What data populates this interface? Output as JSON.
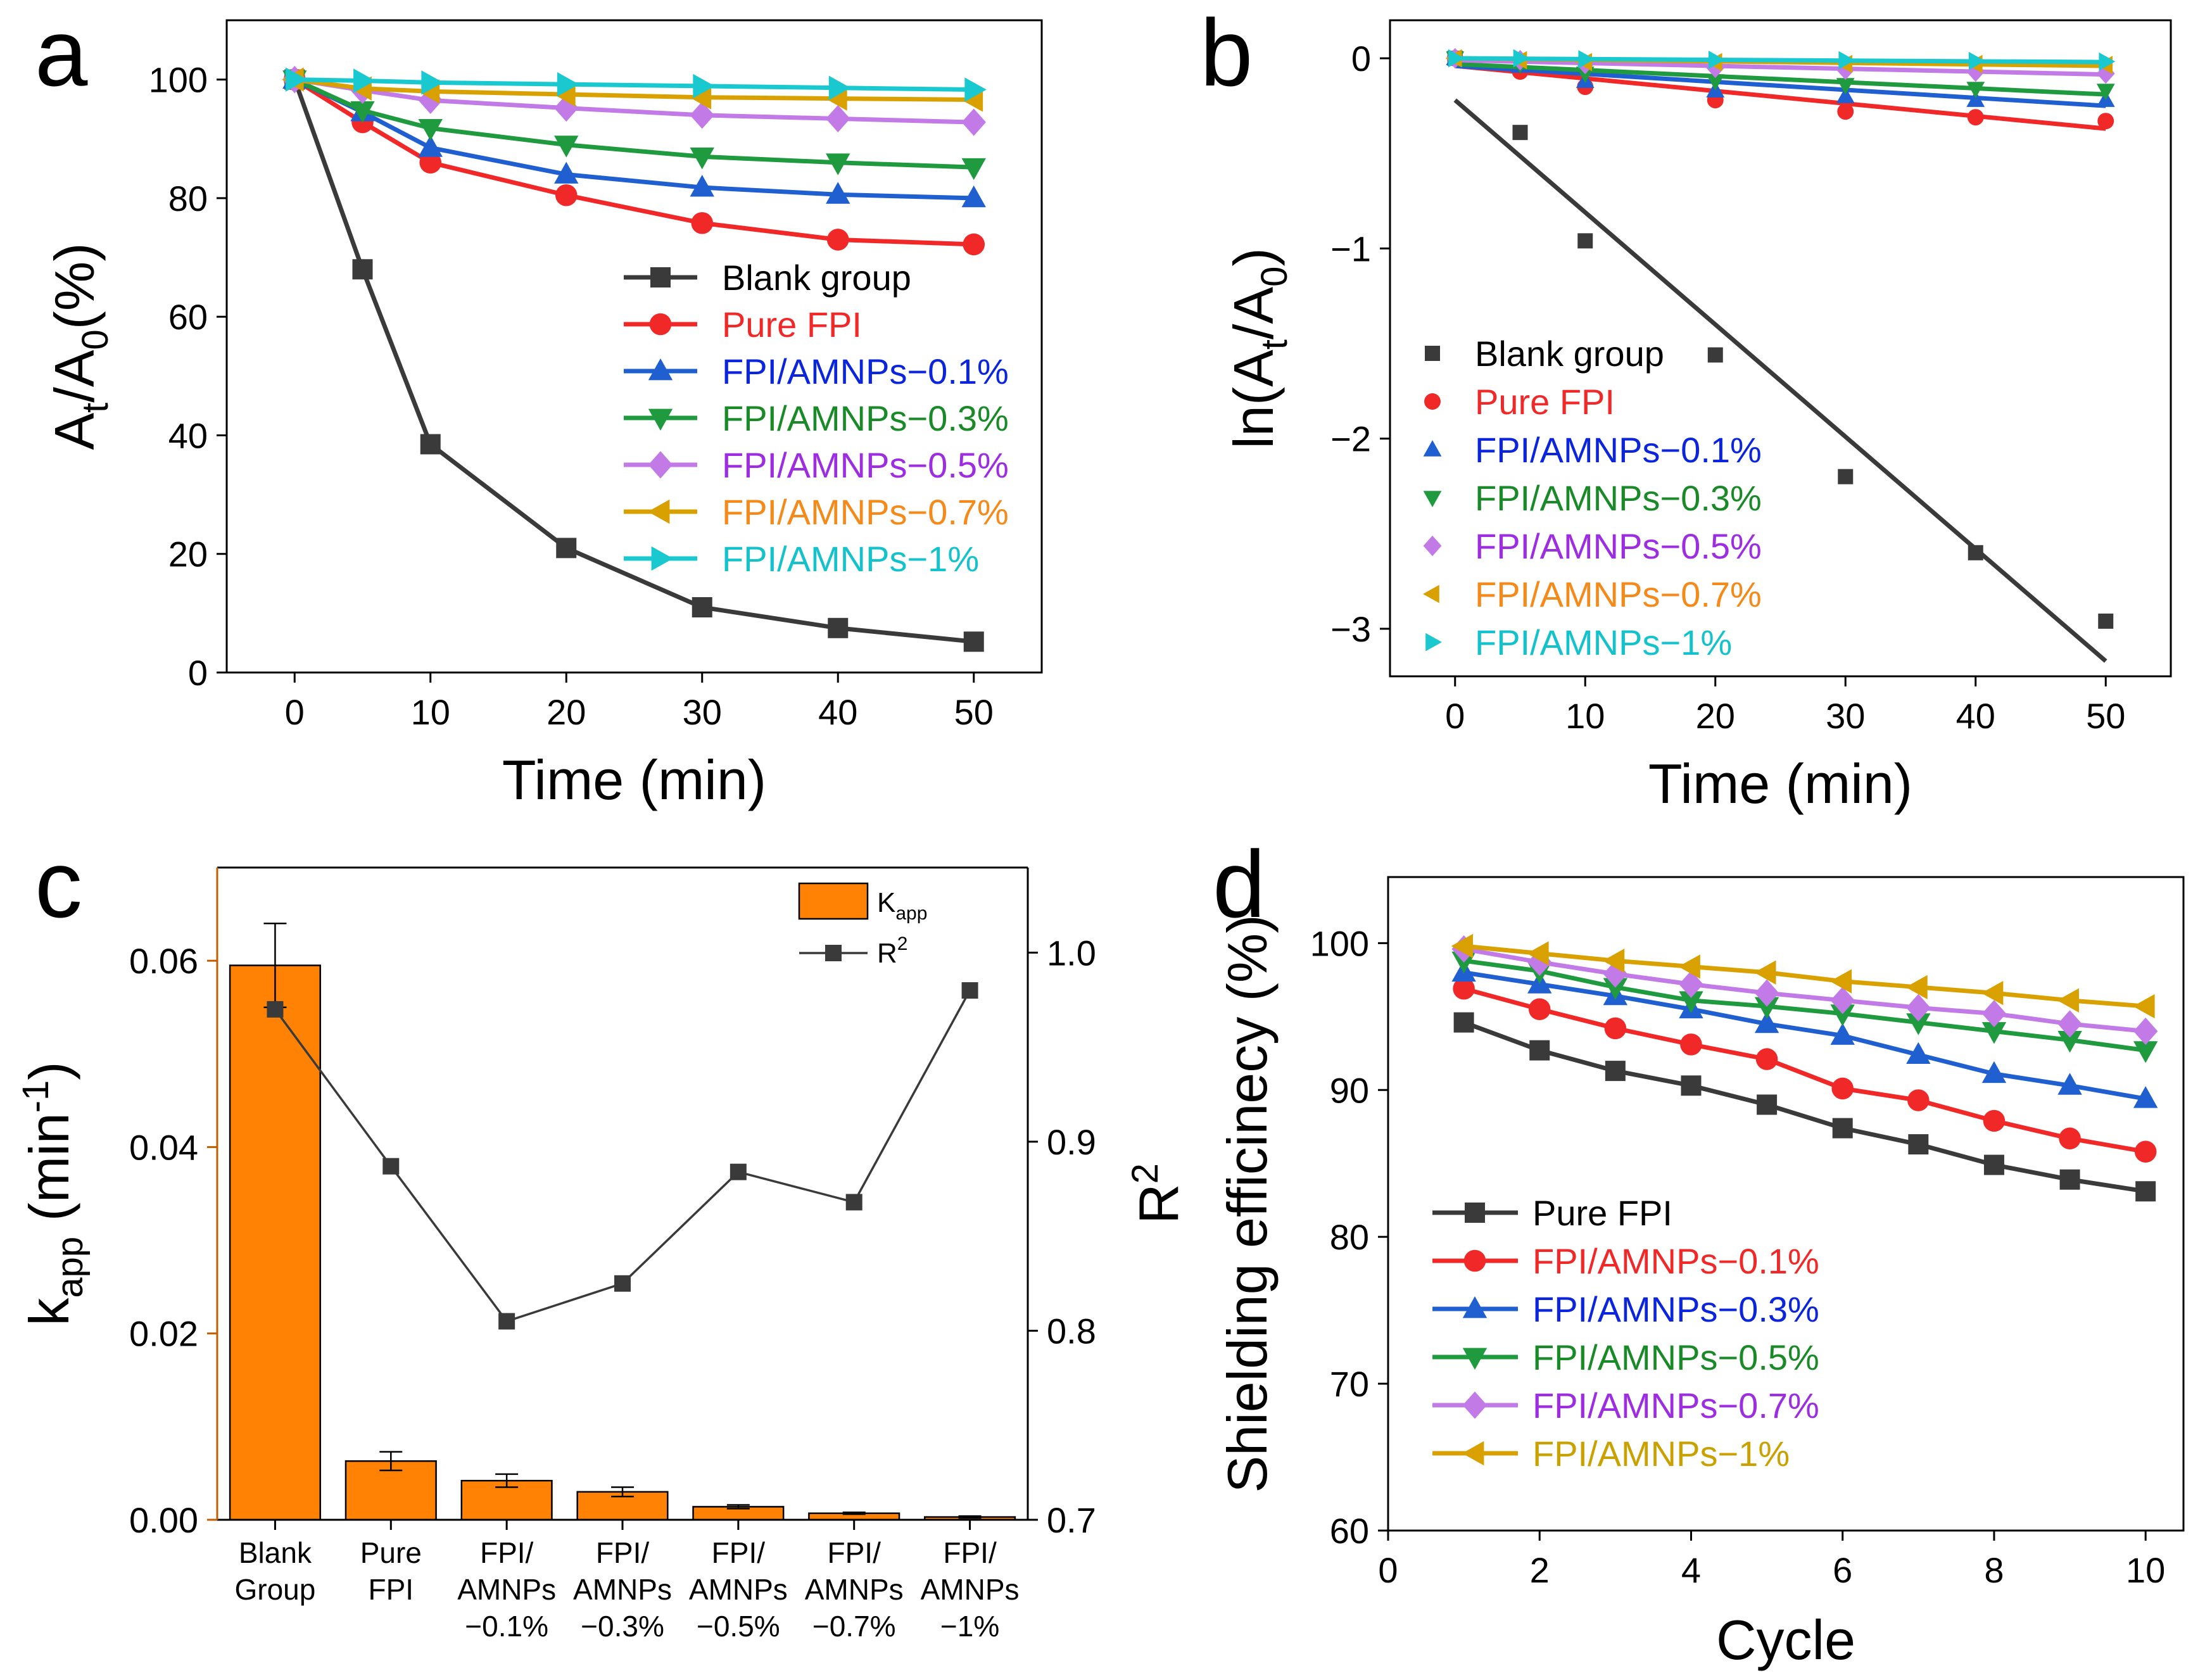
{
  "colors": {
    "black": "#3a3a3a",
    "red": "#f02828",
    "blue": "#1f5fd0",
    "green": "#1f9a3e",
    "violet": "#c27ae6",
    "gold": "#d9a100",
    "cyan": "#19c9cf",
    "orange": "#ff8205",
    "axis_orange": "#c25e00",
    "legend_blue": "#0b25dd",
    "legend_green": "#1a8a28",
    "legend_violet": "#9d2de0",
    "legend_orange": "#f38a1a",
    "legend_cyan": "#14c2cc",
    "legend_gold": "#c9a100"
  },
  "chart_data": [
    {
      "panel": "a",
      "type": "line",
      "xlabel": "Time (min)",
      "ylabel": {
        "base": "A",
        "sub1": "t",
        "mid": "/A",
        "sub2": "0",
        "tail": "(%)"
      },
      "xlim": [
        -5,
        55
      ],
      "ylim": [
        0,
        110
      ],
      "xticks": [
        0,
        10,
        20,
        30,
        40,
        50
      ],
      "yticks": [
        0,
        20,
        40,
        60,
        80,
        100
      ],
      "legend_position": "center-right",
      "x": [
        0,
        5,
        10,
        20,
        30,
        40,
        50
      ],
      "series": [
        {
          "name": "Blank group",
          "marker": "square",
          "color": "#3a3a3a",
          "legend_color": "#000000",
          "values": [
            100,
            68,
            38.5,
            21,
            11,
            7.5,
            5.2
          ]
        },
        {
          "name": "Pure FPI",
          "marker": "circle",
          "color": "#f02828",
          "legend_color": "#f02828",
          "values": [
            100,
            92.8,
            86,
            80.5,
            75.8,
            73,
            72.2
          ]
        },
        {
          "name": "FPI/AMNPs−0.1%",
          "marker": "triangle-up",
          "color": "#1f5fd0",
          "legend_color": "#0b25dd",
          "values": [
            100,
            94.5,
            88.5,
            84,
            81.8,
            80.6,
            80
          ]
        },
        {
          "name": "FPI/AMNPs−0.3%",
          "marker": "triangle-down",
          "color": "#1f9a3e",
          "legend_color": "#1a8a28",
          "values": [
            100,
            94.8,
            91.8,
            89,
            87,
            86,
            85.2
          ]
        },
        {
          "name": "FPI/AMNPs−0.5%",
          "marker": "diamond",
          "color": "#c27ae6",
          "legend_color": "#9d2de0",
          "values": [
            100,
            98.2,
            96.5,
            95.2,
            94,
            93.4,
            92.8
          ]
        },
        {
          "name": "FPI/AMNPs−0.7%",
          "marker": "triangle-left",
          "color": "#d9a100",
          "legend_color": "#f38a1a",
          "values": [
            100,
            98.5,
            98,
            97.5,
            97,
            96.8,
            96.6
          ]
        },
        {
          "name": "FPI/AMNPs−1%",
          "marker": "triangle-right",
          "color": "#19c9cf",
          "legend_color": "#14c2cc",
          "values": [
            100,
            99.8,
            99.5,
            99.2,
            98.9,
            98.6,
            98.3
          ]
        }
      ]
    },
    {
      "panel": "b",
      "type": "scatter",
      "xlabel": "Time (min)",
      "ylabel": {
        "base": "ln(A",
        "sub1": "t",
        "mid": "/A",
        "sub2": "0",
        "tail": ")"
      },
      "xlim": [
        -5,
        55
      ],
      "ylim": [
        -3.25,
        0.2
      ],
      "xticks": [
        0,
        10,
        20,
        30,
        40,
        50
      ],
      "yticks": [
        -3,
        -2,
        -1,
        0
      ],
      "legend_position": "center-left",
      "x": [
        0,
        5,
        10,
        20,
        30,
        40,
        50
      ],
      "series": [
        {
          "name": "Blank group",
          "marker": "square",
          "color": "#3a3a3a",
          "legend_color": "#000000",
          "values": [
            0,
            -0.39,
            -0.96,
            -1.56,
            -2.2,
            -2.6,
            -2.96
          ],
          "fit": [
            -0.22,
            -3.17
          ]
        },
        {
          "name": "Pure FPI",
          "marker": "circle",
          "color": "#f02828",
          "legend_color": "#f02828",
          "values": [
            0,
            -0.07,
            -0.15,
            -0.22,
            -0.28,
            -0.31,
            -0.33
          ],
          "fit": [
            -0.04,
            -0.37
          ]
        },
        {
          "name": "FPI/AMNPs−0.1%",
          "marker": "triangle-up",
          "color": "#1f5fd0",
          "legend_color": "#0b25dd",
          "values": [
            0,
            -0.04,
            -0.12,
            -0.17,
            -0.2,
            -0.22,
            -0.22
          ],
          "fit": [
            -0.04,
            -0.25
          ]
        },
        {
          "name": "FPI/AMNPs−0.3%",
          "marker": "triangle-down",
          "color": "#1f9a3e",
          "legend_color": "#1a8a28",
          "values": [
            0,
            -0.03,
            -0.08,
            -0.12,
            -0.14,
            -0.16,
            -0.17
          ],
          "fit": [
            -0.03,
            -0.19
          ]
        },
        {
          "name": "FPI/AMNPs−0.5%",
          "marker": "diamond",
          "color": "#c27ae6",
          "legend_color": "#9d2de0",
          "values": [
            0,
            -0.01,
            -0.03,
            -0.05,
            -0.06,
            -0.07,
            -0.08
          ],
          "fit": [
            -0.01,
            -0.085
          ]
        },
        {
          "name": "FPI/AMNPs−0.7%",
          "marker": "triangle-left",
          "color": "#d9a100",
          "legend_color": "#f38a1a",
          "values": [
            0,
            -0.01,
            -0.02,
            -0.02,
            -0.03,
            -0.03,
            -0.035
          ],
          "fit": [
            0,
            -0.04
          ]
        },
        {
          "name": "FPI/AMNPs−1%",
          "marker": "triangle-right",
          "color": "#19c9cf",
          "legend_color": "#14c2cc",
          "values": [
            0,
            0,
            -0.005,
            -0.008,
            -0.01,
            -0.014,
            -0.017
          ],
          "fit": [
            0,
            -0.02
          ]
        }
      ]
    },
    {
      "panel": "c",
      "type": "bar",
      "categories": [
        [
          "Blank",
          "Group"
        ],
        [
          "Pure",
          "FPI"
        ],
        [
          "FPI/",
          "AMNPs",
          "−0.1%"
        ],
        [
          "FPI/",
          "AMNPs",
          "−0.3%"
        ],
        [
          "FPI/",
          "AMNPs",
          "−0.5%"
        ],
        [
          "FPI/",
          "AMNPs",
          "−0.7%"
        ],
        [
          "FPI/",
          "AMNPs",
          "−1%"
        ]
      ],
      "ylabel": {
        "base": "k",
        "sub1": "app",
        "mid": " (min",
        "sup": "-1",
        "tail": ")"
      },
      "y2label": {
        "base": "R",
        "sup": "2"
      },
      "ylim": [
        0,
        0.07
      ],
      "yticks": [
        "0.00",
        "0.02",
        "0.04",
        "0.06"
      ],
      "y2lim": [
        0.7,
        1.045
      ],
      "y2ticks": [
        "0.7",
        "0.8",
        "0.9",
        "1.0"
      ],
      "legend_position": "top-right",
      "legend": {
        "bar_base": "K",
        "bar_sub": "app",
        "line_base": "R",
        "line_sup": "2"
      },
      "series": [
        {
          "name": "Kapp",
          "axis": "left",
          "color": "#ff8205",
          "values": [
            0.0595,
            0.0063,
            0.0042,
            0.003,
            0.0014,
            0.0007,
            0.0003
          ],
          "errors": [
            0.0045,
            0.001,
            0.0007,
            0.0005,
            0.0002,
            0.0001,
            0.0001
          ]
        },
        {
          "name": "R2",
          "axis": "right",
          "color": "#3a3a3a",
          "values": [
            0.97,
            0.887,
            0.805,
            0.825,
            0.884,
            0.868,
            0.98
          ]
        }
      ]
    },
    {
      "panel": "d",
      "type": "line",
      "xlabel": "Cycle",
      "ylabel": "Shielding efficinecy (%)",
      "xlim": [
        0,
        10.5
      ],
      "ylim": [
        60,
        104.5
      ],
      "xticks": [
        0,
        2,
        4,
        6,
        8,
        10
      ],
      "yticks": [
        60,
        70,
        80,
        90,
        100
      ],
      "legend_position": "bottom-left",
      "x": [
        1,
        2,
        3,
        4,
        5,
        6,
        7,
        8,
        9,
        10
      ],
      "series": [
        {
          "name": "Pure FPI",
          "marker": "square",
          "color": "#3a3a3a",
          "legend_color": "#000000",
          "values": [
            94.6,
            92.7,
            91.3,
            90.3,
            89,
            87.4,
            86.3,
            84.9,
            83.9,
            83.1
          ]
        },
        {
          "name": "FPI/AMNPs−0.1%",
          "marker": "circle",
          "color": "#f02828",
          "legend_color": "#f02828",
          "values": [
            96.9,
            95.5,
            94.2,
            93.1,
            92.1,
            90.1,
            89.3,
            87.9,
            86.7,
            85.8
          ]
        },
        {
          "name": "FPI/AMNPs−0.3%",
          "marker": "triangle-up",
          "color": "#1f5fd0",
          "legend_color": "#0b25dd",
          "values": [
            98,
            97.2,
            96.4,
            95.5,
            94.5,
            93.7,
            92.4,
            91.1,
            90.3,
            89.4
          ]
        },
        {
          "name": "FPI/AMNPs−0.5%",
          "marker": "triangle-down",
          "color": "#1f9a3e",
          "legend_color": "#1a8a28",
          "values": [
            98.8,
            98.1,
            97,
            96.1,
            95.7,
            95.2,
            94.6,
            94,
            93.4,
            92.7
          ]
        },
        {
          "name": "FPI/AMNPs−0.7%",
          "marker": "diamond",
          "color": "#c27ae6",
          "legend_color": "#9d2de0",
          "values": [
            99.6,
            98.7,
            97.9,
            97.2,
            96.6,
            96.1,
            95.6,
            95.2,
            94.5,
            94
          ]
        },
        {
          "name": "FPI/AMNPs−1%",
          "marker": "triangle-left",
          "color": "#d9a100",
          "legend_color": "#c9a100",
          "values": [
            99.8,
            99.3,
            98.8,
            98.4,
            98,
            97.4,
            97,
            96.6,
            96.1,
            95.7
          ]
        }
      ]
    }
  ]
}
